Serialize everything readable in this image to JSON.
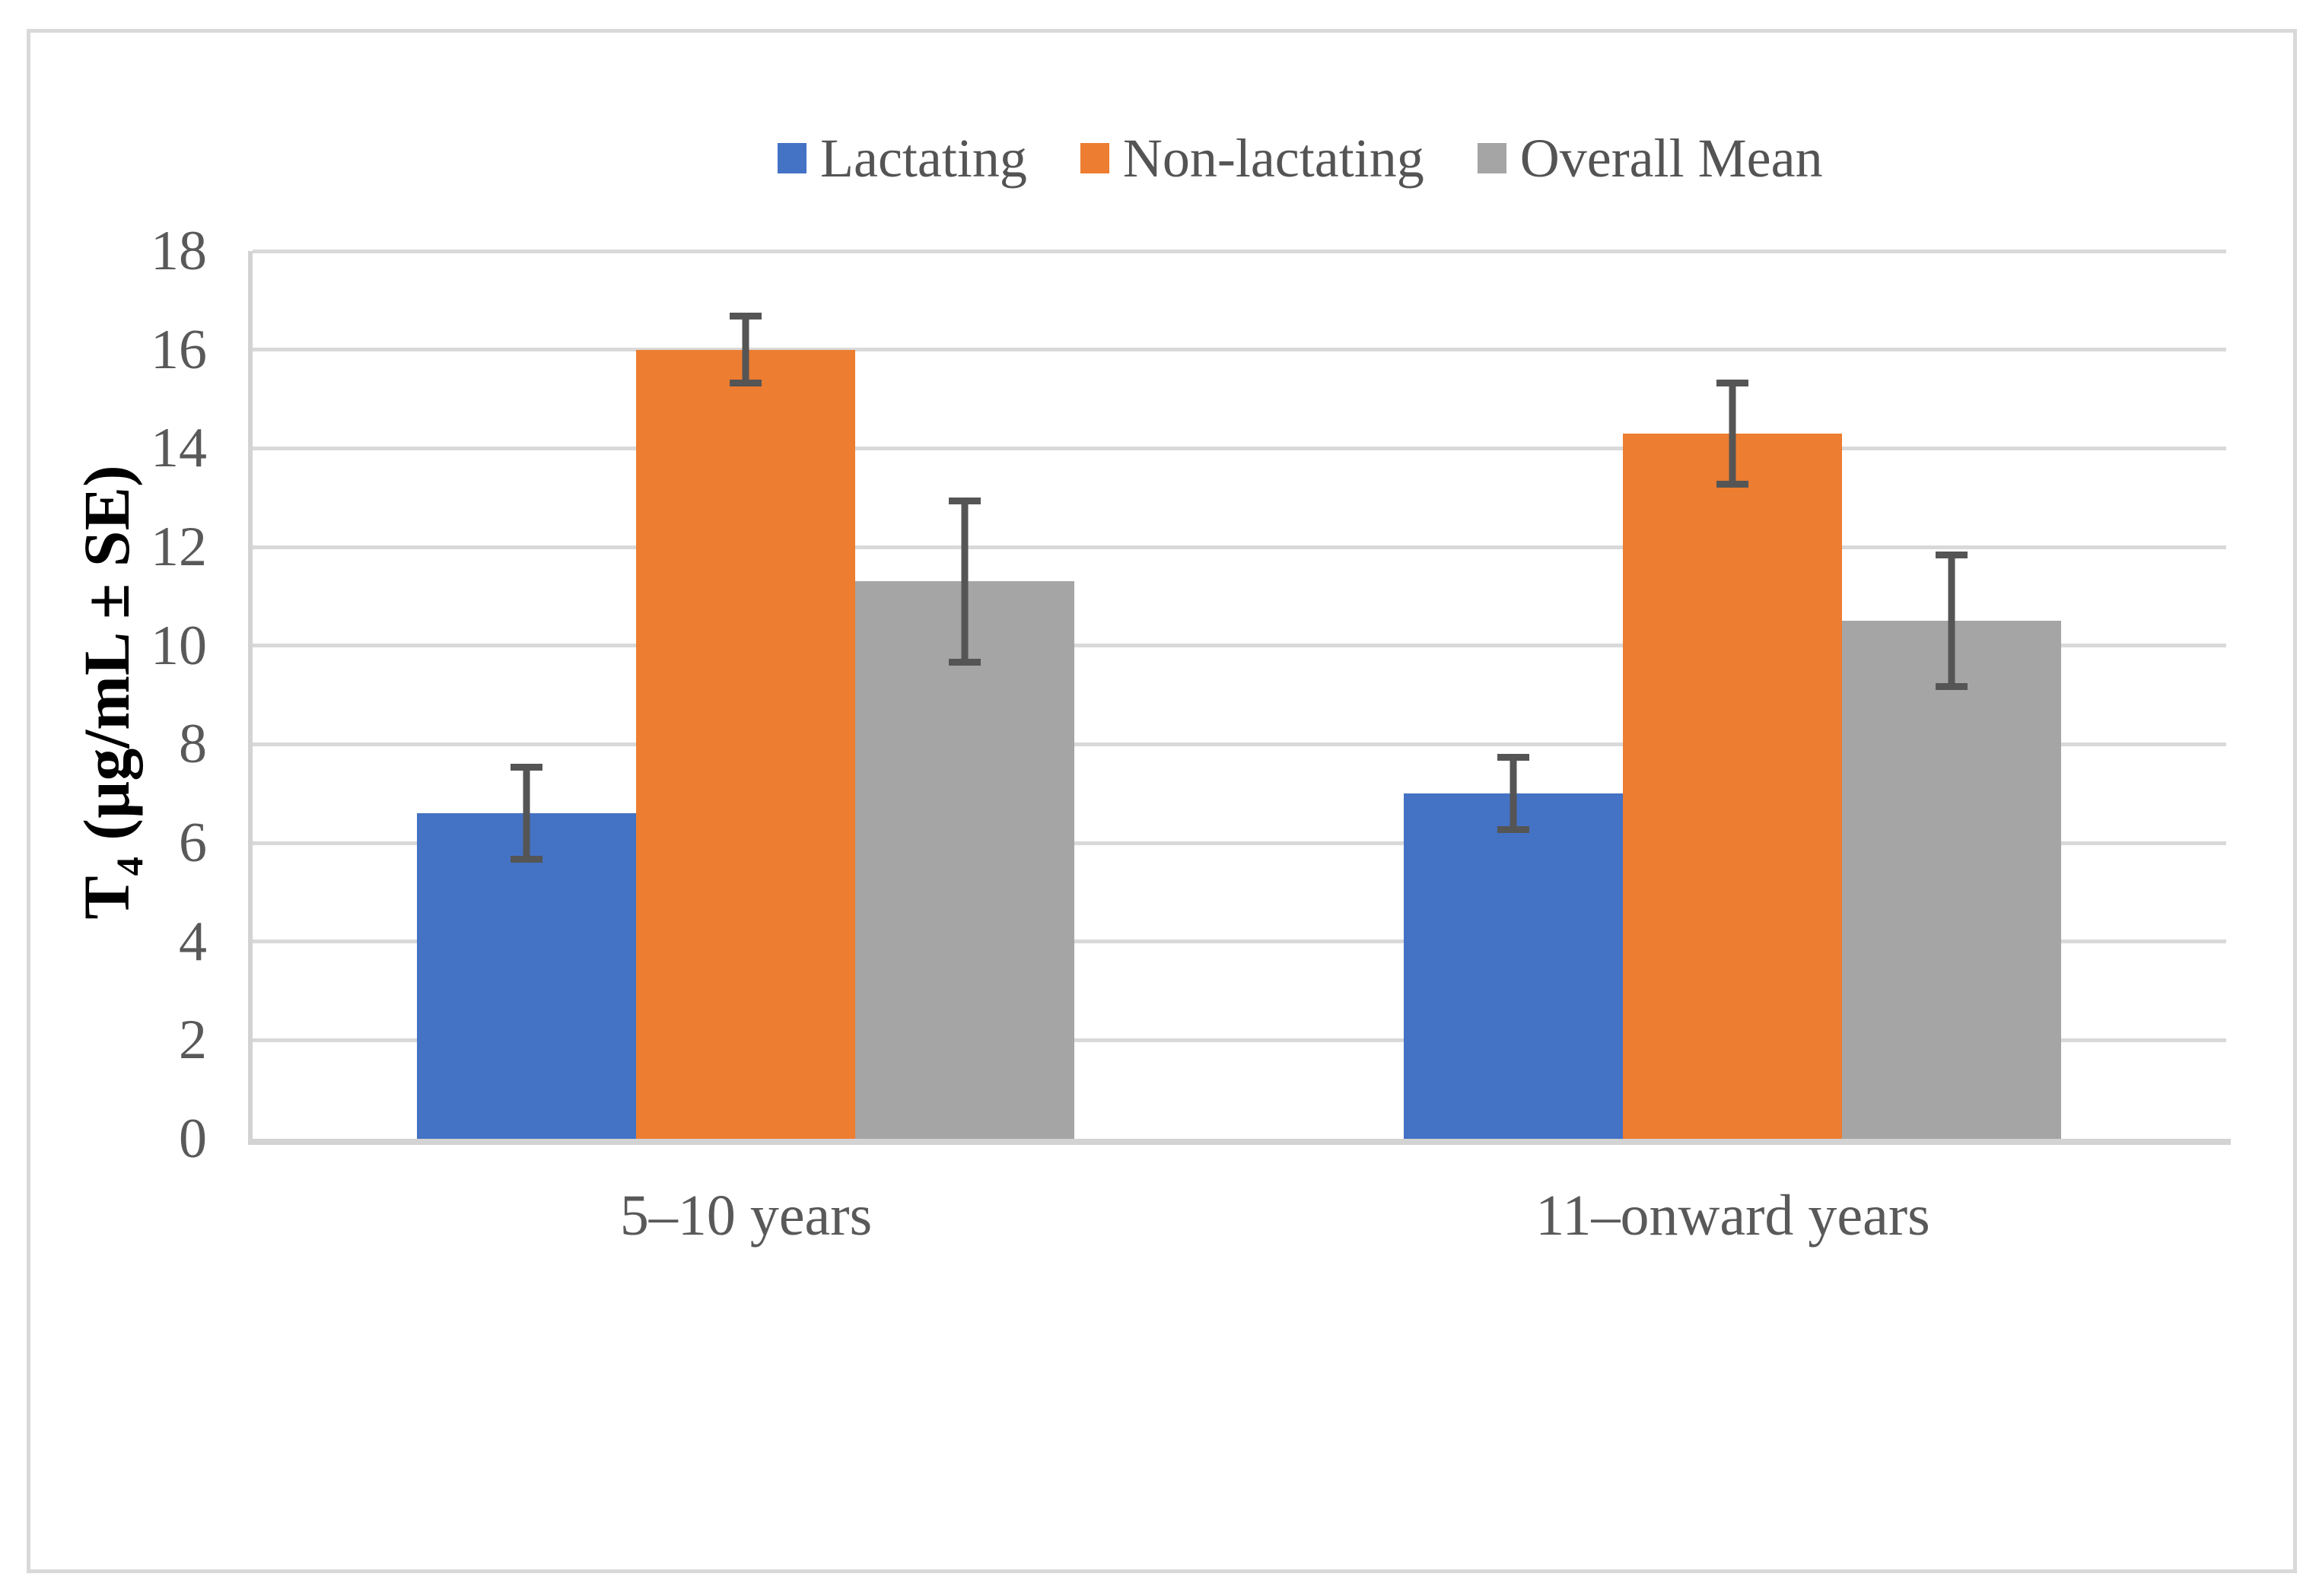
{
  "figure": {
    "background": "#FFFFFF",
    "border_color": "#D9D9D9"
  },
  "chart_data": {
    "type": "bar",
    "title": "",
    "categories": [
      "5–10 years",
      "11–onward years"
    ],
    "series": [
      {
        "name": "Lactating",
        "color": "#4472C4",
        "values": [
          6.6,
          7.0
        ],
        "errors": [
          1.0,
          0.8
        ]
      },
      {
        "name": "Non-lactating",
        "color": "#ED7D31",
        "values": [
          16.0,
          14.3
        ],
        "errors": [
          0.75,
          1.1
        ]
      },
      {
        "name": "Overall Mean",
        "color": "#A5A5A5",
        "values": [
          11.3,
          10.5
        ],
        "errors": [
          1.7,
          1.4
        ]
      }
    ],
    "ylabel": "T4 (µg/mL ± SE)",
    "ylabel_parts": {
      "main": "T",
      "sub": "4",
      "rest": " (µg/mL ± SE)"
    },
    "xlabel": "",
    "y_axis": {
      "min": 0,
      "max": 18,
      "step": 2,
      "tick_labels": [
        "0",
        "2",
        "4",
        "6",
        "8",
        "10",
        "12",
        "14",
        "16",
        "18"
      ]
    },
    "legend_position": "top",
    "grid": true,
    "error_bars": true,
    "colors": {
      "gridline": "#D9D9D9",
      "axis_line": "#D3D3D3",
      "error_bar": "#555555",
      "tick_text": "#595959",
      "legend_text": "#545454",
      "ylabel_text": "#000000"
    }
  }
}
